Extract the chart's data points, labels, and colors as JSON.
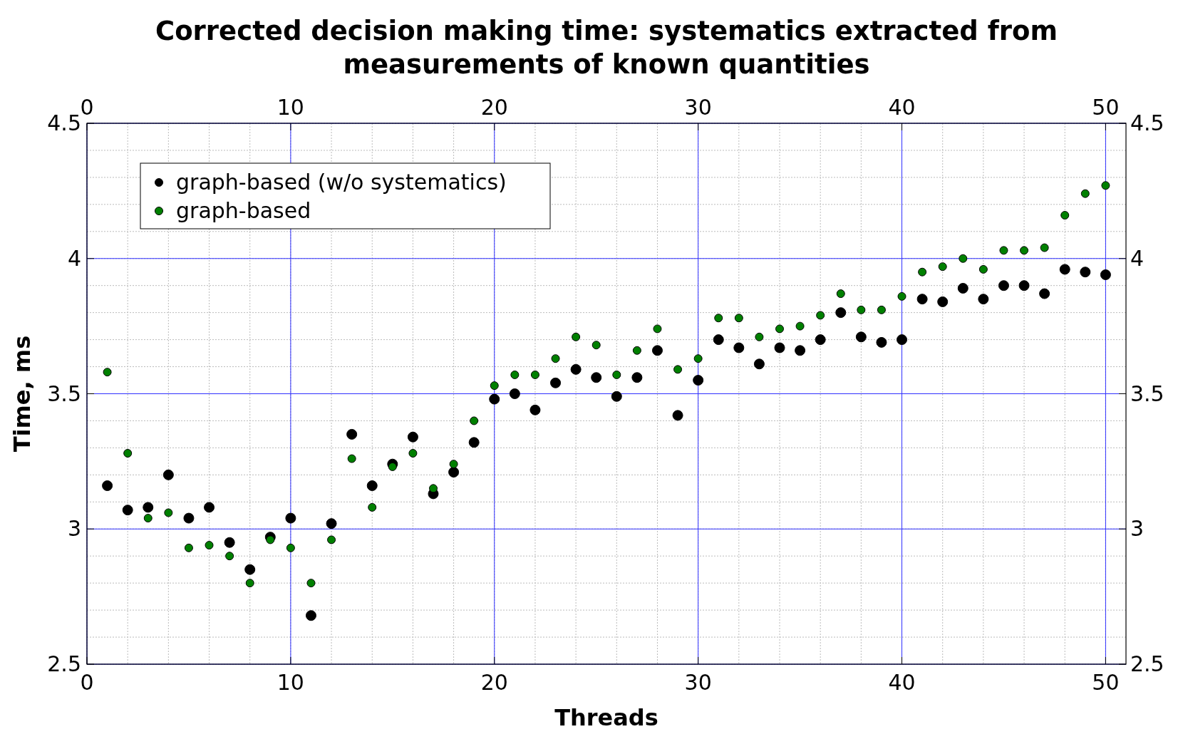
{
  "chart_data": {
    "type": "scatter",
    "title": "Corrected decision making time: systematics extracted from measurements of known quantities",
    "xlabel": "Threads",
    "ylabel": "Time, ms",
    "x": [
      1,
      2,
      3,
      4,
      5,
      6,
      7,
      8,
      9,
      10,
      11,
      12,
      13,
      14,
      15,
      16,
      17,
      18,
      19,
      20,
      21,
      22,
      23,
      24,
      25,
      26,
      27,
      28,
      29,
      30,
      31,
      32,
      33,
      34,
      35,
      36,
      37,
      38,
      39,
      40,
      41,
      42,
      43,
      44,
      45,
      46,
      47,
      48,
      49,
      50
    ],
    "series": [
      {
        "name": "graph-based (w/o systematics)",
        "color": "#000000",
        "values": [
          3.16,
          3.07,
          3.08,
          3.2,
          3.04,
          3.08,
          2.95,
          2.85,
          2.97,
          3.04,
          2.68,
          3.02,
          3.35,
          3.16,
          3.24,
          3.34,
          3.13,
          3.21,
          3.32,
          3.48,
          3.5,
          3.44,
          3.54,
          3.59,
          3.56,
          3.49,
          3.56,
          3.66,
          3.42,
          3.55,
          3.7,
          3.67,
          3.61,
          3.67,
          3.66,
          3.7,
          3.8,
          3.71,
          3.69,
          3.7,
          3.85,
          3.84,
          3.89,
          3.85,
          3.9,
          3.9,
          3.87,
          3.96,
          3.95,
          3.94
        ]
      },
      {
        "name": "graph-based",
        "color": "#008000",
        "values": [
          3.58,
          3.28,
          3.04,
          3.06,
          2.93,
          2.94,
          2.9,
          2.8,
          2.96,
          2.93,
          2.8,
          2.96,
          3.26,
          3.08,
          3.23,
          3.28,
          3.15,
          3.24,
          3.4,
          3.53,
          3.57,
          3.57,
          3.63,
          3.71,
          3.68,
          3.57,
          3.66,
          3.74,
          3.59,
          3.63,
          3.78,
          3.78,
          3.71,
          3.74,
          3.75,
          3.79,
          3.87,
          3.81,
          3.81,
          3.86,
          3.95,
          3.97,
          4.0,
          3.96,
          4.03,
          4.03,
          4.04,
          4.16,
          4.24,
          4.27
        ]
      }
    ],
    "xlim": [
      0,
      51
    ],
    "xticks": [
      0,
      10,
      20,
      30,
      40,
      50
    ],
    "x2lim": [
      0,
      51
    ],
    "x2ticks": [
      0,
      10,
      20,
      30,
      40,
      50
    ],
    "ylim": [
      2.5,
      4.5
    ],
    "yticks": [
      2.5,
      3,
      3.5,
      4,
      4.5
    ],
    "y2lim": [
      2.5,
      4.5
    ],
    "y2ticks": [
      2.5,
      3,
      3.5,
      4,
      4.5
    ],
    "grid": true,
    "legend": "top left",
    "marker": "circle"
  }
}
